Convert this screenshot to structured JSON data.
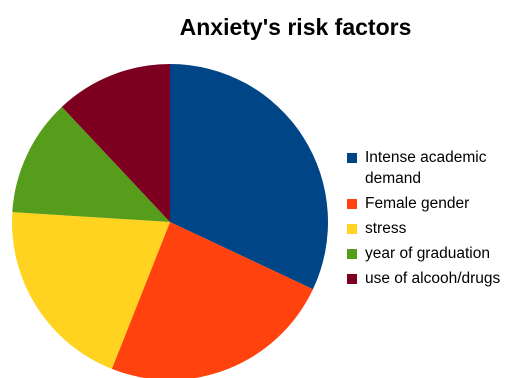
{
  "chart_data": {
    "type": "pie",
    "title": "Anxiety's risk factors",
    "legend_position": "right",
    "slices": [
      {
        "label": "Intense academic demand",
        "value": 32,
        "color": "#004586"
      },
      {
        "label": "Female gender",
        "value": 24,
        "color": "#ff420e"
      },
      {
        "label": "stress",
        "value": 20,
        "color": "#ffd320"
      },
      {
        "label": "year of graduation",
        "value": 12,
        "color": "#579d1c"
      },
      {
        "label": "use of alcooh/drugs",
        "value": 12,
        "color": "#7e0021"
      }
    ]
  }
}
